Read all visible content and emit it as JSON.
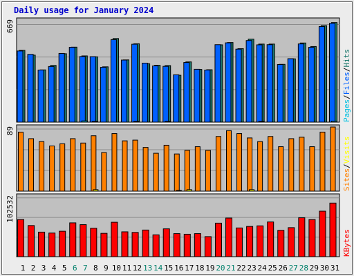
{
  "title": "Daily usage for January 2024",
  "colors": {
    "background": "#ececec",
    "panel": "#c0c0c0",
    "grid": "#8c8c8c",
    "title": "#0000cc",
    "hits": "#1e7a6e",
    "files": "#0060ff",
    "pages": "#00c0e0",
    "visits": "#ffff00",
    "sites": "#ff8000",
    "kbytes": "#ff0000",
    "weekend_day": "#00806b",
    "weekday": "#000000"
  },
  "panels": [
    {
      "id": "hits",
      "max_label": "669",
      "legend": [
        "Pages",
        "Files",
        "Hits"
      ],
      "legend_seps": [
        "/",
        "/"
      ]
    },
    {
      "id": "visits",
      "max_label": "89",
      "legend": [
        "Sites",
        "Visits"
      ],
      "legend_seps": [
        "/"
      ]
    },
    {
      "id": "kbytes",
      "max_label": "102532",
      "legend": [
        "KBytes"
      ],
      "legend_seps": []
    }
  ],
  "chart_data": [
    {
      "type": "bar",
      "categories": [
        "1",
        "2",
        "3",
        "4",
        "5",
        "6",
        "7",
        "8",
        "9",
        "10",
        "11",
        "12",
        "13",
        "14",
        "15",
        "16",
        "17",
        "18",
        "19",
        "20",
        "21",
        "22",
        "23",
        "24",
        "25",
        "26",
        "27",
        "28",
        "29",
        "30",
        "31"
      ],
      "weekend_days": [
        "6",
        "7",
        "13",
        "14",
        "20",
        "21",
        "27",
        "28"
      ],
      "ylim": [
        0,
        669
      ],
      "series": [
        {
          "name": "Hits",
          "values": [
            467,
            436,
            340,
            369,
            445,
            488,
            431,
            425,
            360,
            544,
            405,
            510,
            380,
            370,
            368,
            305,
            392,
            343,
            341,
            503,
            518,
            478,
            540,
            508,
            508,
            376,
            412,
            515,
            492,
            628,
            648
          ]
        },
        {
          "name": "Files",
          "values": [
            463,
            441,
            339,
            362,
            447,
            487,
            427,
            426,
            357,
            537,
            404,
            507,
            384,
            366,
            363,
            308,
            388,
            344,
            339,
            504,
            516,
            475,
            531,
            503,
            504,
            375,
            413,
            509,
            487,
            622,
            643
          ]
        },
        {
          "name": "Pages",
          "values": [
            0,
            0,
            0,
            0,
            0,
            0,
            8,
            4,
            0,
            0,
            0,
            2,
            0,
            0,
            2,
            0,
            0,
            0,
            0,
            0,
            0,
            0,
            0,
            4,
            0,
            0,
            0,
            0,
            0,
            0,
            6
          ]
        }
      ]
    },
    {
      "type": "bar",
      "categories": [
        "1",
        "2",
        "3",
        "4",
        "5",
        "6",
        "7",
        "8",
        "9",
        "10",
        "11",
        "12",
        "13",
        "14",
        "15",
        "16",
        "17",
        "18",
        "19",
        "20",
        "21",
        "22",
        "23",
        "24",
        "25",
        "26",
        "27",
        "28",
        "29",
        "30",
        "31"
      ],
      "ylim": [
        0,
        89
      ],
      "series": [
        {
          "name": "Visits",
          "values": [
            81,
            72,
            68,
            62,
            65,
            72,
            66,
            76,
            53,
            79,
            69,
            70,
            60,
            52,
            63,
            51,
            56,
            61,
            56,
            75,
            83,
            79,
            73,
            68,
            75,
            61,
            72,
            74,
            61,
            81,
            88
          ]
        },
        {
          "name": "Sites",
          "values": [
            0,
            0,
            0,
            0,
            0,
            0,
            0,
            2,
            0,
            0,
            0,
            0,
            0,
            0,
            0,
            1,
            2,
            0,
            0,
            0,
            0,
            0,
            2,
            0,
            0,
            0,
            0,
            0,
            0,
            0,
            0
          ]
        }
      ]
    },
    {
      "type": "bar",
      "categories": [
        "1",
        "2",
        "3",
        "4",
        "5",
        "6",
        "7",
        "8",
        "9",
        "10",
        "11",
        "12",
        "13",
        "14",
        "15",
        "16",
        "17",
        "18",
        "19",
        "20",
        "21",
        "22",
        "23",
        "24",
        "25",
        "26",
        "27",
        "28",
        "29",
        "30",
        "31"
      ],
      "ylim": [
        0,
        102532
      ],
      "series": [
        {
          "name": "KBytes",
          "values": [
            62000,
            52000,
            41000,
            39500,
            42500,
            56500,
            53500,
            47500,
            39000,
            57500,
            41500,
            40500,
            44500,
            36500,
            46500,
            38500,
            37500,
            38500,
            33500,
            56000,
            64500,
            48000,
            50500,
            51500,
            58000,
            44000,
            48500,
            65000,
            62000,
            76000,
            89500
          ]
        }
      ]
    }
  ]
}
